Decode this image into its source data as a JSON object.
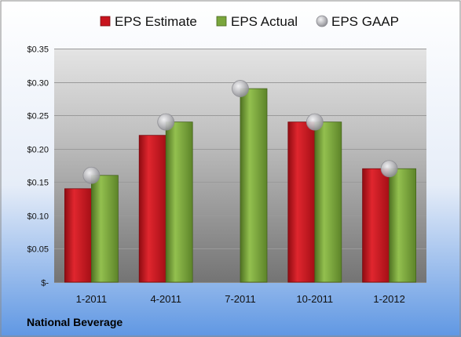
{
  "company": "National Beverage",
  "colors": {
    "estimate": "#c8141e",
    "actual": "#7aa63c",
    "gaap": "#b8b8bc",
    "bg_top": "#ffffff",
    "bg_bottom": "#5f97e3"
  },
  "chart_data": {
    "type": "bar",
    "title": "",
    "xlabel": "",
    "ylabel": "",
    "categories": [
      "1-2011",
      "4-2011",
      "7-2011",
      "10-2011",
      "1-2012"
    ],
    "series": [
      {
        "name": "EPS Estimate",
        "kind": "bar",
        "values": [
          0.14,
          0.22,
          null,
          0.24,
          0.17
        ]
      },
      {
        "name": "EPS Actual",
        "kind": "bar",
        "values": [
          0.16,
          0.24,
          0.29,
          0.24,
          0.17
        ]
      },
      {
        "name": "EPS GAAP",
        "kind": "marker",
        "values": [
          0.16,
          0.24,
          0.29,
          0.24,
          0.17
        ]
      }
    ],
    "ylim": [
      0,
      0.35
    ],
    "yticks": [
      0,
      0.05,
      0.1,
      0.15,
      0.2,
      0.25,
      0.3,
      0.35
    ],
    "ytick_labels": [
      "$-",
      "$0.05",
      "$0.10",
      "$0.15",
      "$0.20",
      "$0.25",
      "$0.30",
      "$0.35"
    ],
    "grid": true,
    "legend_position": "top"
  }
}
